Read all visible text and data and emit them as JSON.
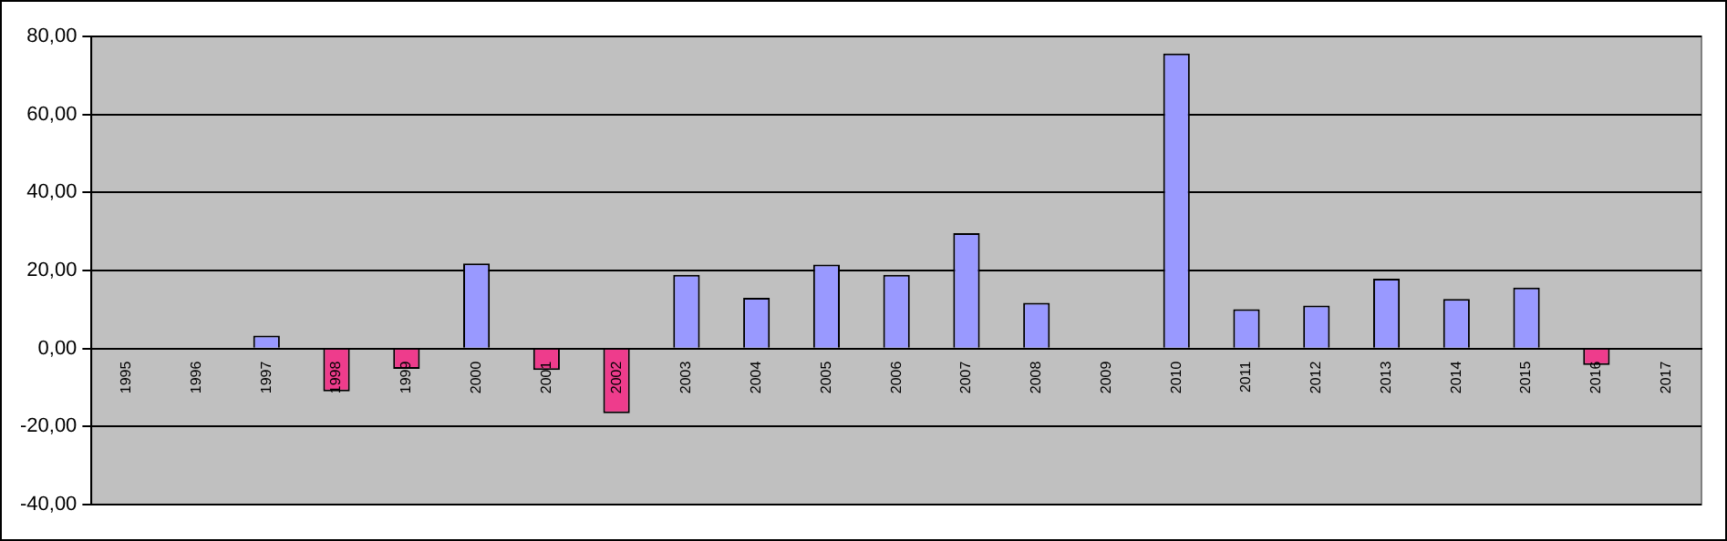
{
  "chart_data": {
    "type": "bar",
    "categories": [
      "1995",
      "1996",
      "1997",
      "1998",
      "1999",
      "2000",
      "2001",
      "2002",
      "2003",
      "2004",
      "2005",
      "2006",
      "2007",
      "2008",
      "2009",
      "2010",
      "2011",
      "2012",
      "2013",
      "2014",
      "2015",
      "2016",
      "2017"
    ],
    "values": [
      null,
      null,
      3.3,
      -11,
      -5.2,
      21.8,
      -5.5,
      -16.6,
      18.9,
      13,
      21.5,
      18.9,
      29.6,
      11.7,
      null,
      75.6,
      10.1,
      11,
      17.9,
      12.7,
      15.6,
      -4.2,
      null
    ],
    "colors": [
      "#9999ff",
      "#9999ff",
      "#9999ff",
      "#ee3c8c",
      "#ee3c8c",
      "#9999ff",
      "#ee3c8c",
      "#ee3c8c",
      "#9999ff",
      "#9999ff",
      "#9999ff",
      "#9999ff",
      "#9999ff",
      "#9999ff",
      "#9999ff",
      "#9999ff",
      "#9999ff",
      "#9999ff",
      "#9999ff",
      "#9999ff",
      "#9999ff",
      "#ee3c8c",
      "#9999ff"
    ],
    "ylim": [
      -40,
      80
    ],
    "yticks": [
      {
        "value": -40,
        "label": "-40,00"
      },
      {
        "value": -20,
        "label": "-20,00"
      },
      {
        "value": 0,
        "label": "0,00"
      },
      {
        "value": 20,
        "label": "20,00"
      },
      {
        "value": 40,
        "label": "40,00"
      },
      {
        "value": 60,
        "label": "60,00"
      },
      {
        "value": 80,
        "label": "80,00"
      }
    ],
    "grid": "y",
    "legend": false
  }
}
